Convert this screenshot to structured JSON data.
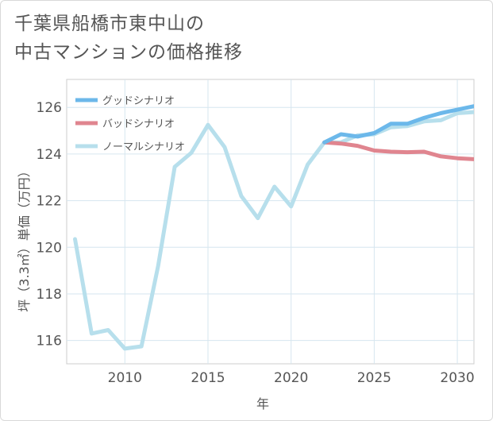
{
  "title_line1": "千葉県船橋市東中山の",
  "title_line2": "中古マンションの価格推移",
  "chart_data": {
    "type": "line",
    "xlabel": "年",
    "ylabel": "坪（3.3㎡）単価（万円）",
    "xlim": [
      2006.5,
      2031
    ],
    "ylim": [
      115,
      127.2
    ],
    "xticks": [
      2010,
      2015,
      2020,
      2025,
      2030
    ],
    "yticks": [
      116,
      118,
      120,
      122,
      124,
      126
    ],
    "grid": true,
    "legend_position": "top-left",
    "series": [
      {
        "name": "グッドシナリオ",
        "color": "#6cb8ea",
        "x": [
          2022,
          2023,
          2024,
          2025,
          2026,
          2027,
          2028,
          2029,
          2030,
          2031
        ],
        "y": [
          124.5,
          124.85,
          124.75,
          124.9,
          125.3,
          125.3,
          125.55,
          125.75,
          125.9,
          126.05
        ]
      },
      {
        "name": "バッドシナリオ",
        "color": "#e0858f",
        "x": [
          2022,
          2023,
          2024,
          2025,
          2026,
          2027,
          2028,
          2029,
          2030,
          2031
        ],
        "y": [
          124.5,
          124.45,
          124.35,
          124.15,
          124.1,
          124.08,
          124.1,
          123.9,
          123.82,
          123.78
        ]
      },
      {
        "name": "ノーマルシナリオ",
        "color": "#b7dfec",
        "x": [
          2007,
          2008,
          2009,
          2010,
          2011,
          2012,
          2013,
          2014,
          2015,
          2016,
          2017,
          2018,
          2019,
          2020,
          2021,
          2022,
          2023,
          2024,
          2025,
          2026,
          2027,
          2028,
          2029,
          2030,
          2031
        ],
        "y": [
          120.35,
          116.3,
          116.45,
          115.65,
          115.75,
          119.2,
          123.45,
          124.05,
          125.25,
          124.3,
          122.2,
          121.25,
          122.6,
          121.75,
          123.55,
          124.5,
          124.5,
          124.8,
          124.85,
          125.15,
          125.2,
          125.4,
          125.45,
          125.75,
          125.8
        ]
      }
    ]
  }
}
